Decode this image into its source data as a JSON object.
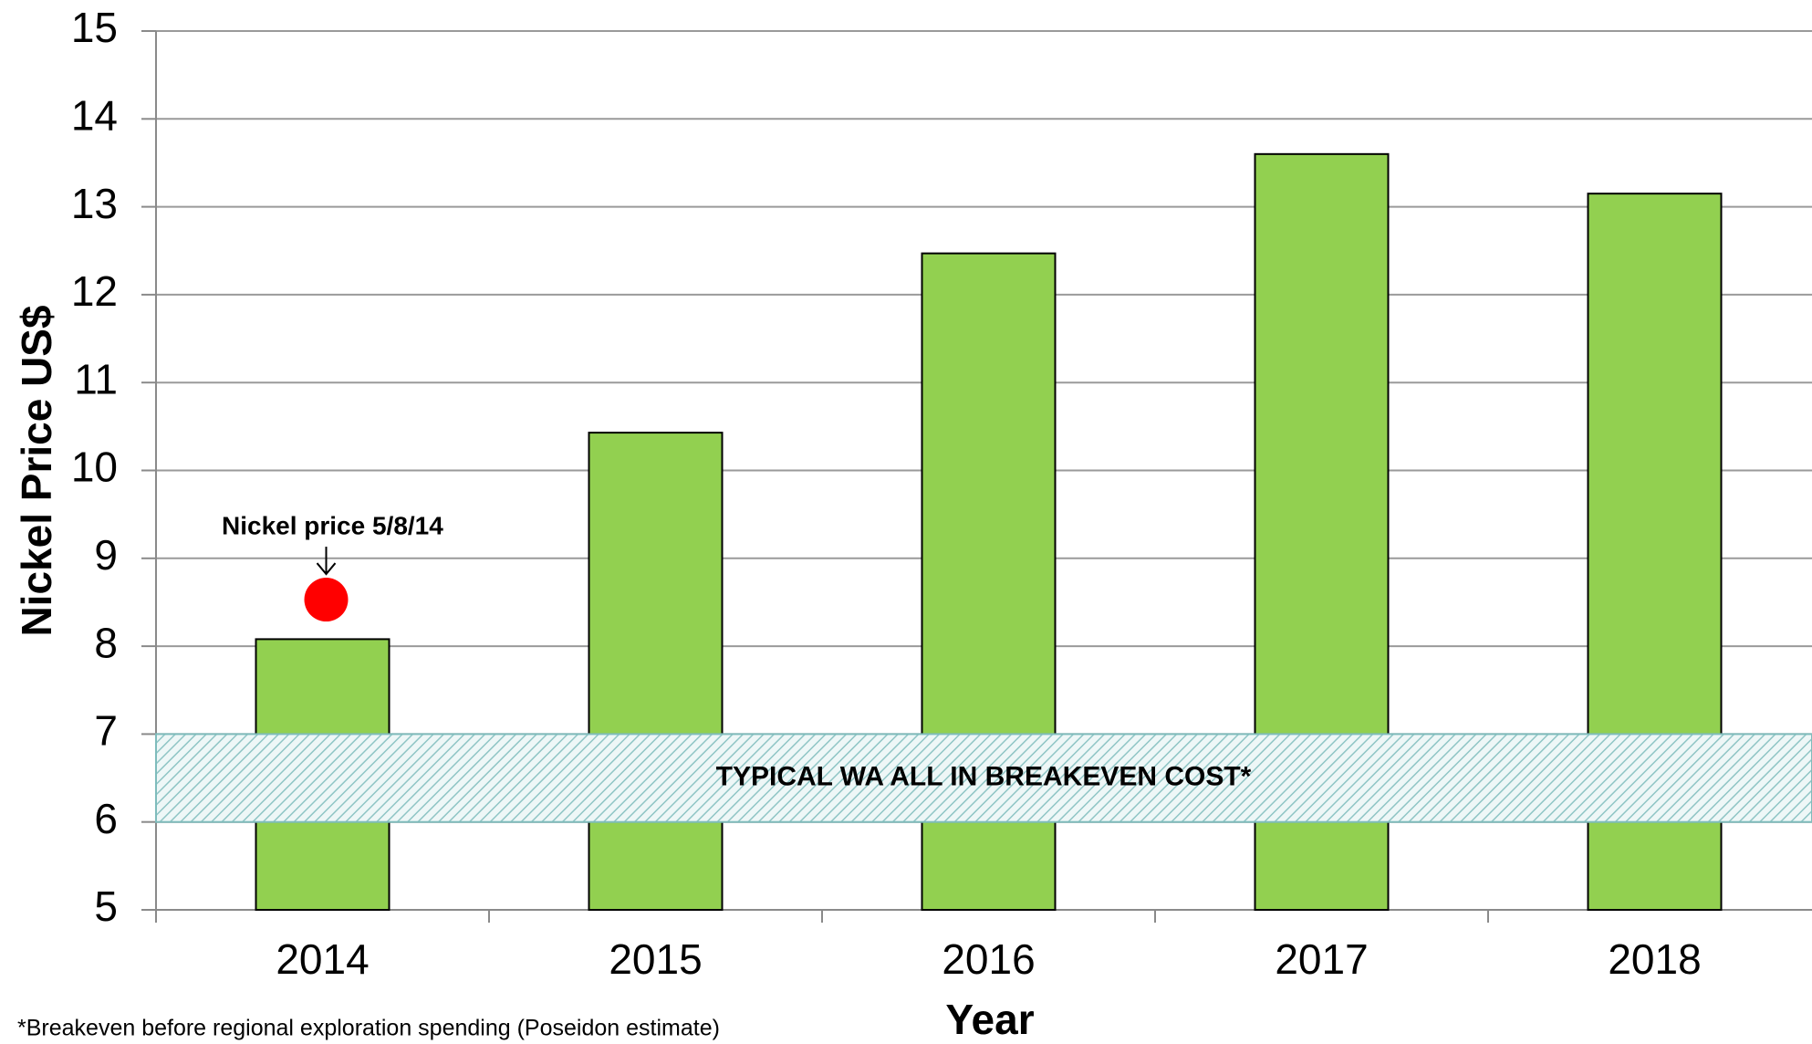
{
  "chart_data": {
    "type": "bar",
    "y_label": "Nickel Price US$",
    "x_label": "Year",
    "categories": [
      "2014",
      "2015",
      "2016",
      "2017",
      "2018"
    ],
    "values": [
      8.08,
      10.43,
      12.47,
      13.6,
      13.15
    ],
    "color": "#92d050",
    "ylim": [
      5,
      15
    ],
    "yticks": [
      5,
      6,
      7,
      8,
      9,
      10,
      11,
      12,
      13,
      14,
      15
    ],
    "grid": true,
    "annotation": {
      "text": "Nickel price 5/8/14",
      "category": "2014",
      "value": 8.53,
      "color": "#ff0000"
    },
    "band": {
      "label": "TYPICAL WA ALL IN BREAKEVEN COST*",
      "range": [
        6,
        7
      ]
    },
    "footnote": "*Breakeven before regional exploration spending (Poseidon estimate)"
  }
}
